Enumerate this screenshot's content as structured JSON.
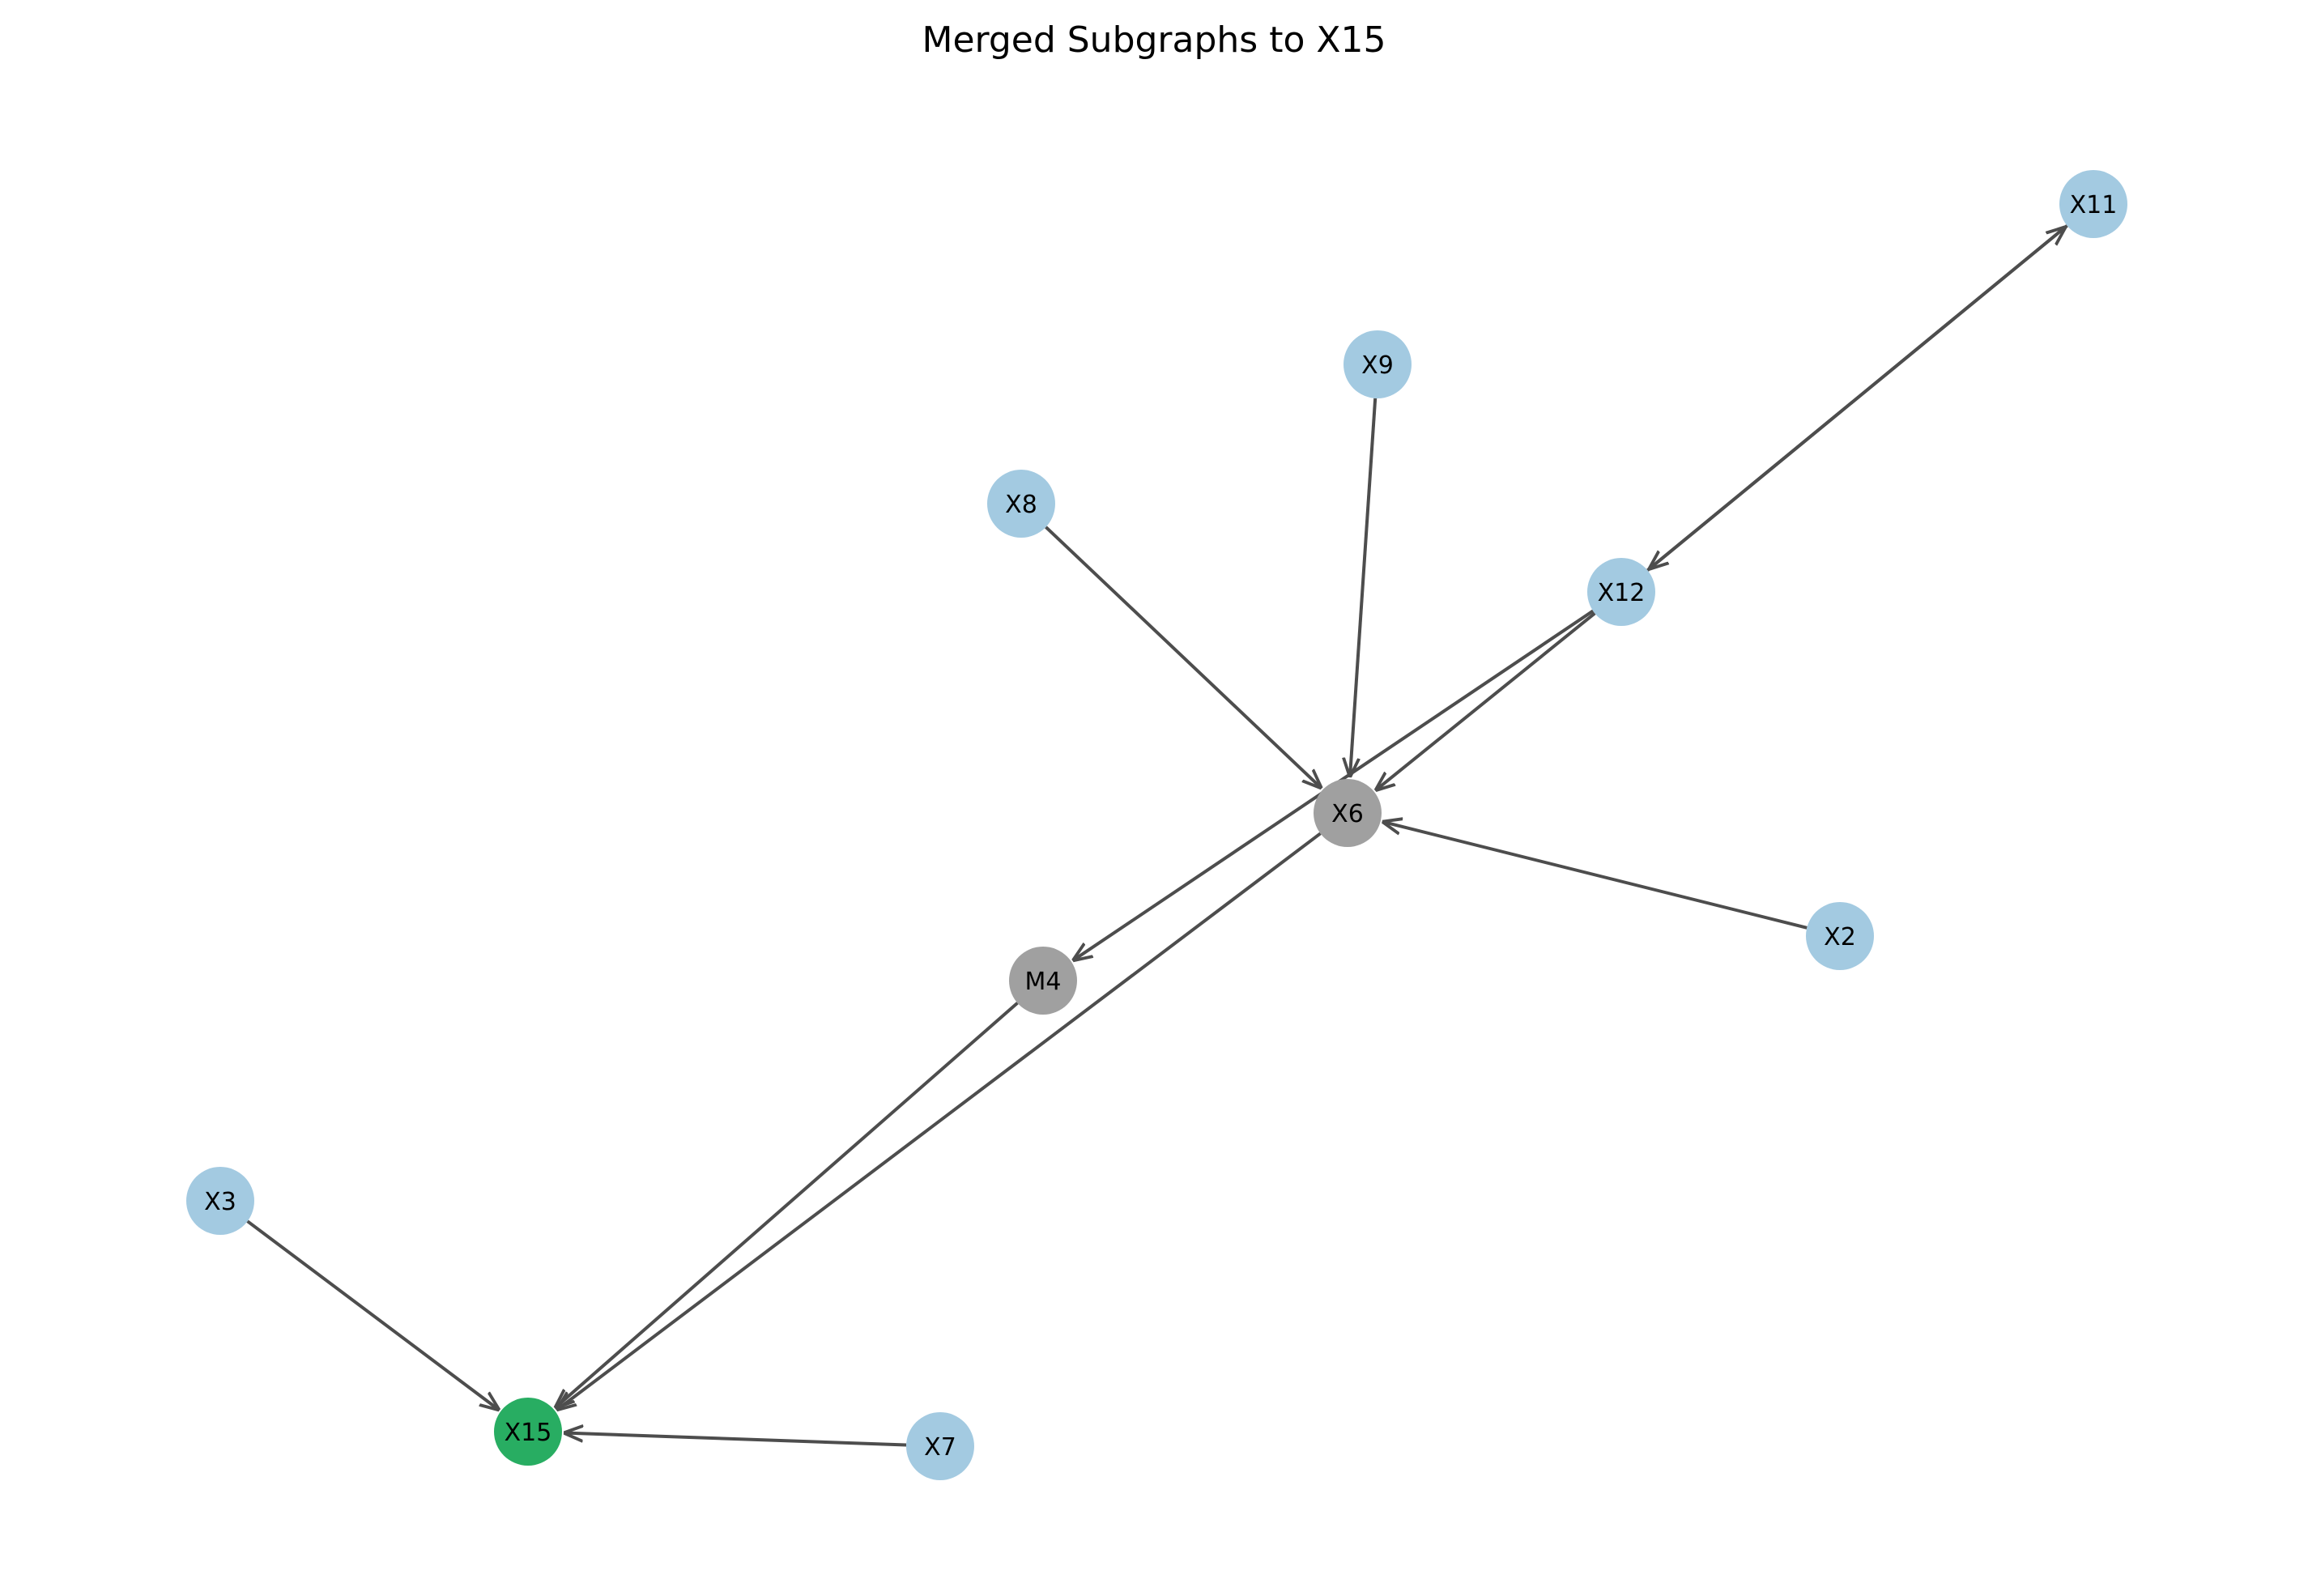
{
  "title": "Merged Subgraphs to X15",
  "colors": {
    "input": "#a3cae1",
    "mediator": "#a0a0a0",
    "target": "#28ad62",
    "edge": "#4d4d4d",
    "background": "#ffffff"
  },
  "nodes": [
    {
      "id": "X11",
      "label": "X11",
      "role": "input"
    },
    {
      "id": "X9",
      "label": "X9",
      "role": "input"
    },
    {
      "id": "X8",
      "label": "X8",
      "role": "input"
    },
    {
      "id": "X12",
      "label": "X12",
      "role": "input"
    },
    {
      "id": "X6",
      "label": "X6",
      "role": "mediator"
    },
    {
      "id": "X2",
      "label": "X2",
      "role": "input"
    },
    {
      "id": "M4",
      "label": "M4",
      "role": "mediator"
    },
    {
      "id": "X3",
      "label": "X3",
      "role": "input"
    },
    {
      "id": "X15",
      "label": "X15",
      "role": "target"
    },
    {
      "id": "X7",
      "label": "X7",
      "role": "input"
    }
  ],
  "edges": [
    {
      "from": "X12",
      "to": "X11"
    },
    {
      "from": "X11",
      "to": "X12"
    },
    {
      "from": "X9",
      "to": "X6"
    },
    {
      "from": "X8",
      "to": "X6"
    },
    {
      "from": "X12",
      "to": "X6"
    },
    {
      "from": "X2",
      "to": "X6"
    },
    {
      "from": "X12",
      "to": "M4"
    },
    {
      "from": "X6",
      "to": "X15"
    },
    {
      "from": "M4",
      "to": "X15"
    },
    {
      "from": "X3",
      "to": "X15"
    },
    {
      "from": "X7",
      "to": "X15"
    }
  ]
}
